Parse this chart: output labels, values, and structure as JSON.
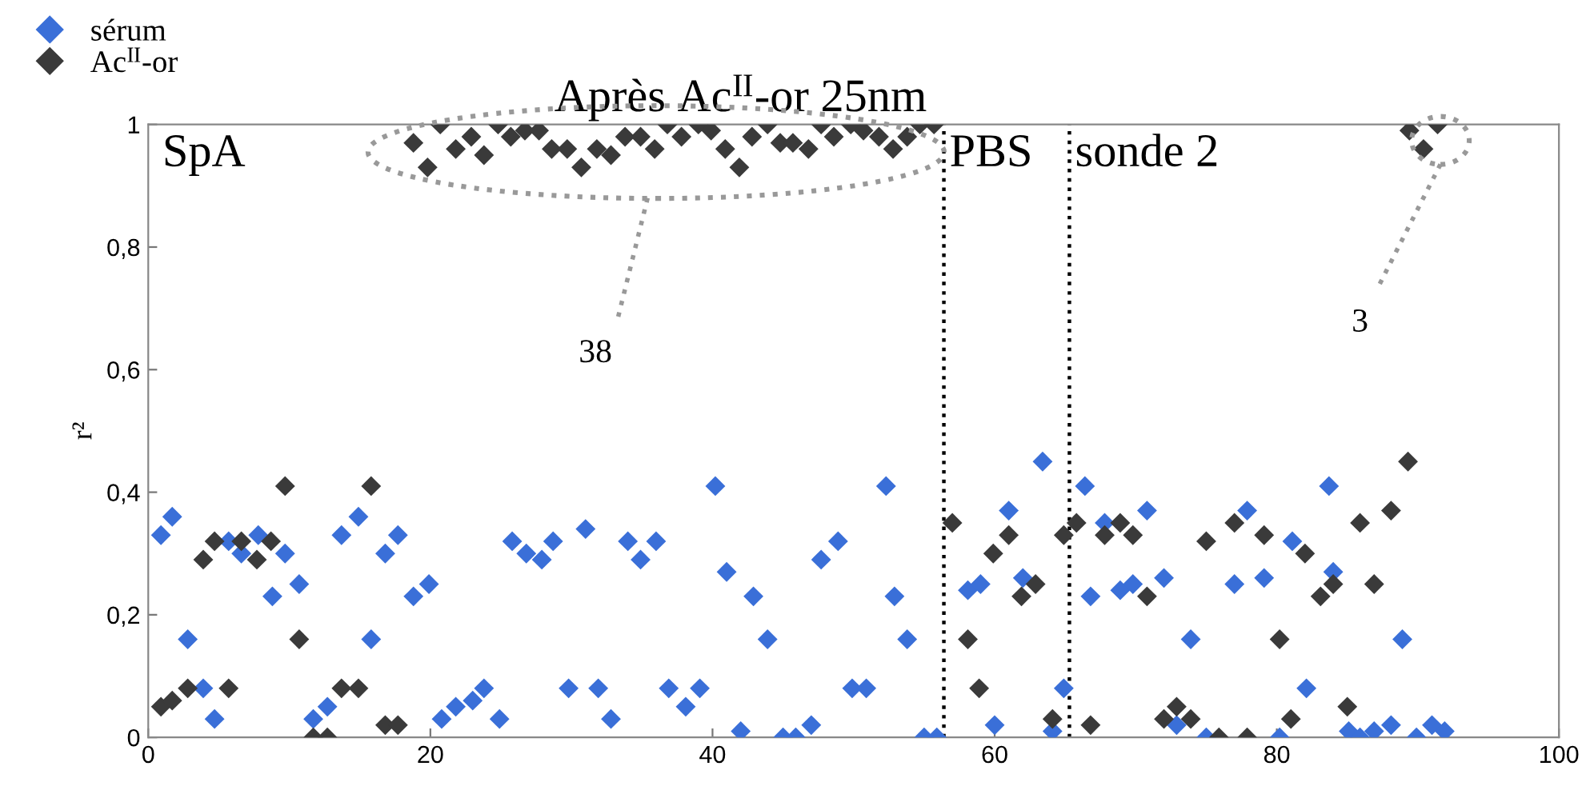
{
  "chart_data": {
    "type": "scatter",
    "title": "Après Ac$^{II}$-or 25nm",
    "ylabel": "r²",
    "xlim": [
      0,
      100
    ],
    "xticks": [
      0,
      20,
      40,
      60,
      80,
      100
    ],
    "ylim": [
      0,
      1
    ],
    "yticks": [
      {
        "value": 0,
        "label": "0"
      },
      {
        "value": 0.2,
        "label": "0,2"
      },
      {
        "value": 0.4,
        "label": "0,4"
      },
      {
        "value": 0.6,
        "label": "0,6"
      },
      {
        "value": 0.8,
        "label": "0,8"
      },
      {
        "value": 1,
        "label": "1"
      }
    ],
    "grid": false,
    "legend": "top left",
    "marker": "diamond",
    "series": [
      {
        "name": "sérum",
        "color": "#3a6fd8",
        "x": [
          0.9,
          1.7,
          2.8,
          3.9,
          4.7,
          5.7,
          6.6,
          7.8,
          8.8,
          9.7,
          10.7,
          11.7,
          12.7,
          13.7,
          14.9,
          15.8,
          16.8,
          17.7,
          18.8,
          19.9,
          20.8,
          21.8,
          23,
          23.8,
          24.9,
          25.8,
          26.8,
          27.9,
          28.7,
          29.8,
          31,
          31.9,
          32.8,
          34,
          34.9,
          36,
          36.9,
          38.1,
          39.1,
          40.2,
          41,
          42,
          42.9,
          43.9,
          45,
          45.9,
          47,
          47.7,
          48.9,
          49.9,
          50.9,
          52.3,
          52.9,
          53.8,
          55,
          55.9,
          58.1,
          59,
          60,
          61,
          62,
          63.4,
          64.1,
          64.9,
          66.4,
          66.8,
          67.8,
          68.9,
          69.8,
          70.8,
          72,
          72.9,
          73.9,
          75,
          77,
          77.9,
          79.1,
          80.2,
          81.1,
          82.1,
          83.7,
          84,
          85.1,
          85.9,
          86.9,
          88.1,
          88.9,
          89.9,
          91,
          91.9
        ],
        "values": [
          0.33,
          0.36,
          0.16,
          0.08,
          0.03,
          0.32,
          0.3,
          0.33,
          0.23,
          0.3,
          0.25,
          0.03,
          0.05,
          0.33,
          0.36,
          0.16,
          0.3,
          0.33,
          0.23,
          0.25,
          0.03,
          0.05,
          0.06,
          0.08,
          0.03,
          0.32,
          0.3,
          0.29,
          0.32,
          0.08,
          0.34,
          0.08,
          0.03,
          0.32,
          0.29,
          0.32,
          0.08,
          0.05,
          0.08,
          0.41,
          0.27,
          0.01,
          0.23,
          0.16,
          0,
          0,
          0.02,
          0.29,
          0.32,
          0.08,
          0.08,
          0.41,
          0.23,
          0.16,
          0,
          0,
          0.24,
          0.25,
          0.02,
          0.37,
          0.26,
          0.45,
          0.01,
          0.08,
          0.41,
          0.23,
          0.35,
          0.24,
          0.25,
          0.37,
          0.26,
          0.02,
          0.16,
          0,
          0.25,
          0.37,
          0.26,
          0,
          0.32,
          0.08,
          0.41,
          0.27,
          0.01,
          0,
          0.01,
          0.02,
          0.16,
          0,
          0.02,
          0.01
        ]
      },
      {
        "name": "Ac$^{II}$-or",
        "color": "#3a3a3a",
        "x": [
          0.9,
          1.7,
          2.8,
          3.9,
          4.7,
          5.7,
          6.6,
          7.7,
          8.7,
          9.7,
          10.7,
          11.7,
          12.7,
          13.7,
          14.9,
          15.8,
          16.8,
          17.7,
          18.8,
          19.8,
          20.7,
          21.8,
          22.9,
          23.8,
          24.8,
          25.7,
          26.7,
          27.7,
          28.6,
          29.7,
          30.7,
          31.8,
          32.8,
          33.8,
          34.9,
          35.9,
          36.8,
          37.8,
          39,
          39.9,
          40.9,
          41.9,
          42.8,
          43.9,
          44.8,
          45.7,
          46.8,
          47.7,
          48.6,
          49.8,
          50.7,
          51.8,
          52.8,
          53.8,
          54.7,
          55.7,
          57,
          58.1,
          58.9,
          59.9,
          61,
          61.9,
          62.9,
          64.1,
          64.9,
          65.8,
          66.8,
          67.8,
          68.9,
          69.8,
          70.8,
          72,
          72.9,
          73.9,
          75,
          75.9,
          77,
          77.9,
          79.1,
          80.2,
          81,
          82,
          83.1,
          84,
          85,
          85.9,
          86.9,
          88.1,
          89.3,
          89.4,
          90.4,
          91.4
        ],
        "values": [
          0.05,
          0.06,
          0.08,
          0.29,
          0.32,
          0.08,
          0.32,
          0.29,
          0.32,
          0.41,
          0.16,
          0,
          0,
          0.08,
          0.08,
          0.41,
          0.02,
          0.02,
          0.97,
          0.93,
          1,
          0.96,
          0.98,
          0.95,
          1,
          0.98,
          0.99,
          0.99,
          0.96,
          0.96,
          0.93,
          0.96,
          0.95,
          0.98,
          0.98,
          0.96,
          1,
          0.98,
          1,
          0.99,
          0.96,
          0.93,
          0.98,
          1,
          0.97,
          0.97,
          0.96,
          1,
          0.98,
          1,
          0.99,
          0.98,
          0.96,
          0.98,
          1,
          1,
          0.35,
          0.16,
          0.08,
          0.3,
          0.33,
          0.23,
          0.25,
          0.03,
          0.33,
          0.35,
          0.02,
          0.33,
          0.35,
          0.33,
          0.23,
          0.03,
          0.05,
          0.03,
          0.32,
          0,
          0.35,
          0,
          0.33,
          0.16,
          0.03,
          0.3,
          0.23,
          0.25,
          0.05,
          0.35,
          0.25,
          0.37,
          0.45,
          0.99,
          0.96,
          1
        ]
      }
    ],
    "ref_lines": [
      {
        "axis": "x",
        "value": 56.4,
        "label": "PBS",
        "color": "#000000",
        "line_style": "dotted"
      },
      {
        "axis": "x",
        "value": 65.3,
        "label": "sonde 2",
        "color": "#000000",
        "line_style": "dotted"
      }
    ],
    "annotations": [
      "SpA",
      "38",
      "3"
    ]
  }
}
